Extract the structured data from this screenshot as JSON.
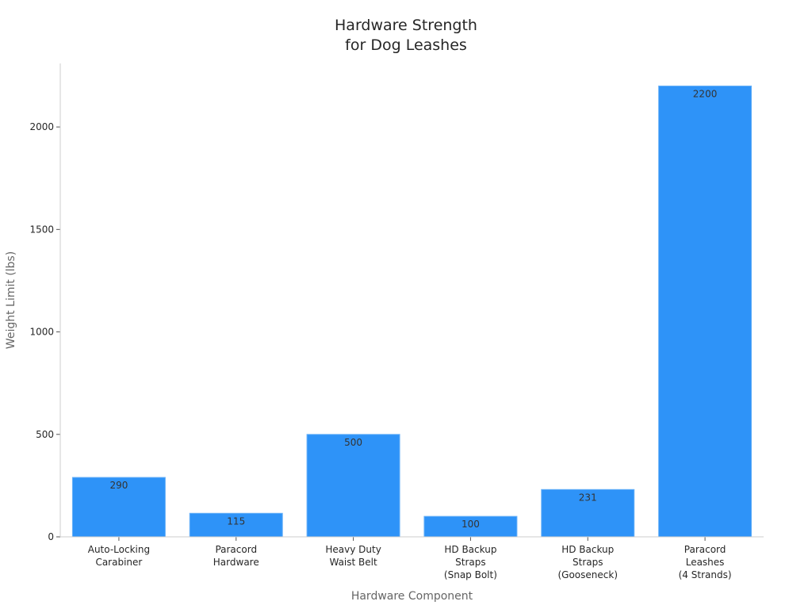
{
  "chart_data": {
    "type": "bar",
    "title_lines": [
      "Hardware Strength",
      "for Dog Leashes"
    ],
    "xlabel": "Hardware Component",
    "ylabel": "Weight Limit (lbs)",
    "categories": [
      [
        "Auto-Locking",
        "Carabiner"
      ],
      [
        "Paracord",
        "Hardware"
      ],
      [
        "Heavy Duty",
        "Waist Belt"
      ],
      [
        "HD Backup",
        "Straps",
        "(Snap Bolt)"
      ],
      [
        "HD Backup",
        "Straps",
        "(Gooseneck)"
      ],
      [
        "Paracord",
        "Leashes",
        "(4 Strands)"
      ]
    ],
    "values": [
      290,
      115,
      500,
      100,
      231,
      2200
    ],
    "data_labels": [
      "290",
      "115",
      "500",
      "100",
      "231",
      "2200"
    ],
    "yticks": [
      0,
      500,
      1000,
      1500,
      2000
    ],
    "ytick_labels": [
      "0",
      "500",
      "1000",
      "1500",
      "2000"
    ],
    "ylim": [
      0,
      2310
    ],
    "grid": false,
    "legend": "none",
    "bar_color": "#2e93f8",
    "bar_edge_color": "#6ab2f8"
  }
}
